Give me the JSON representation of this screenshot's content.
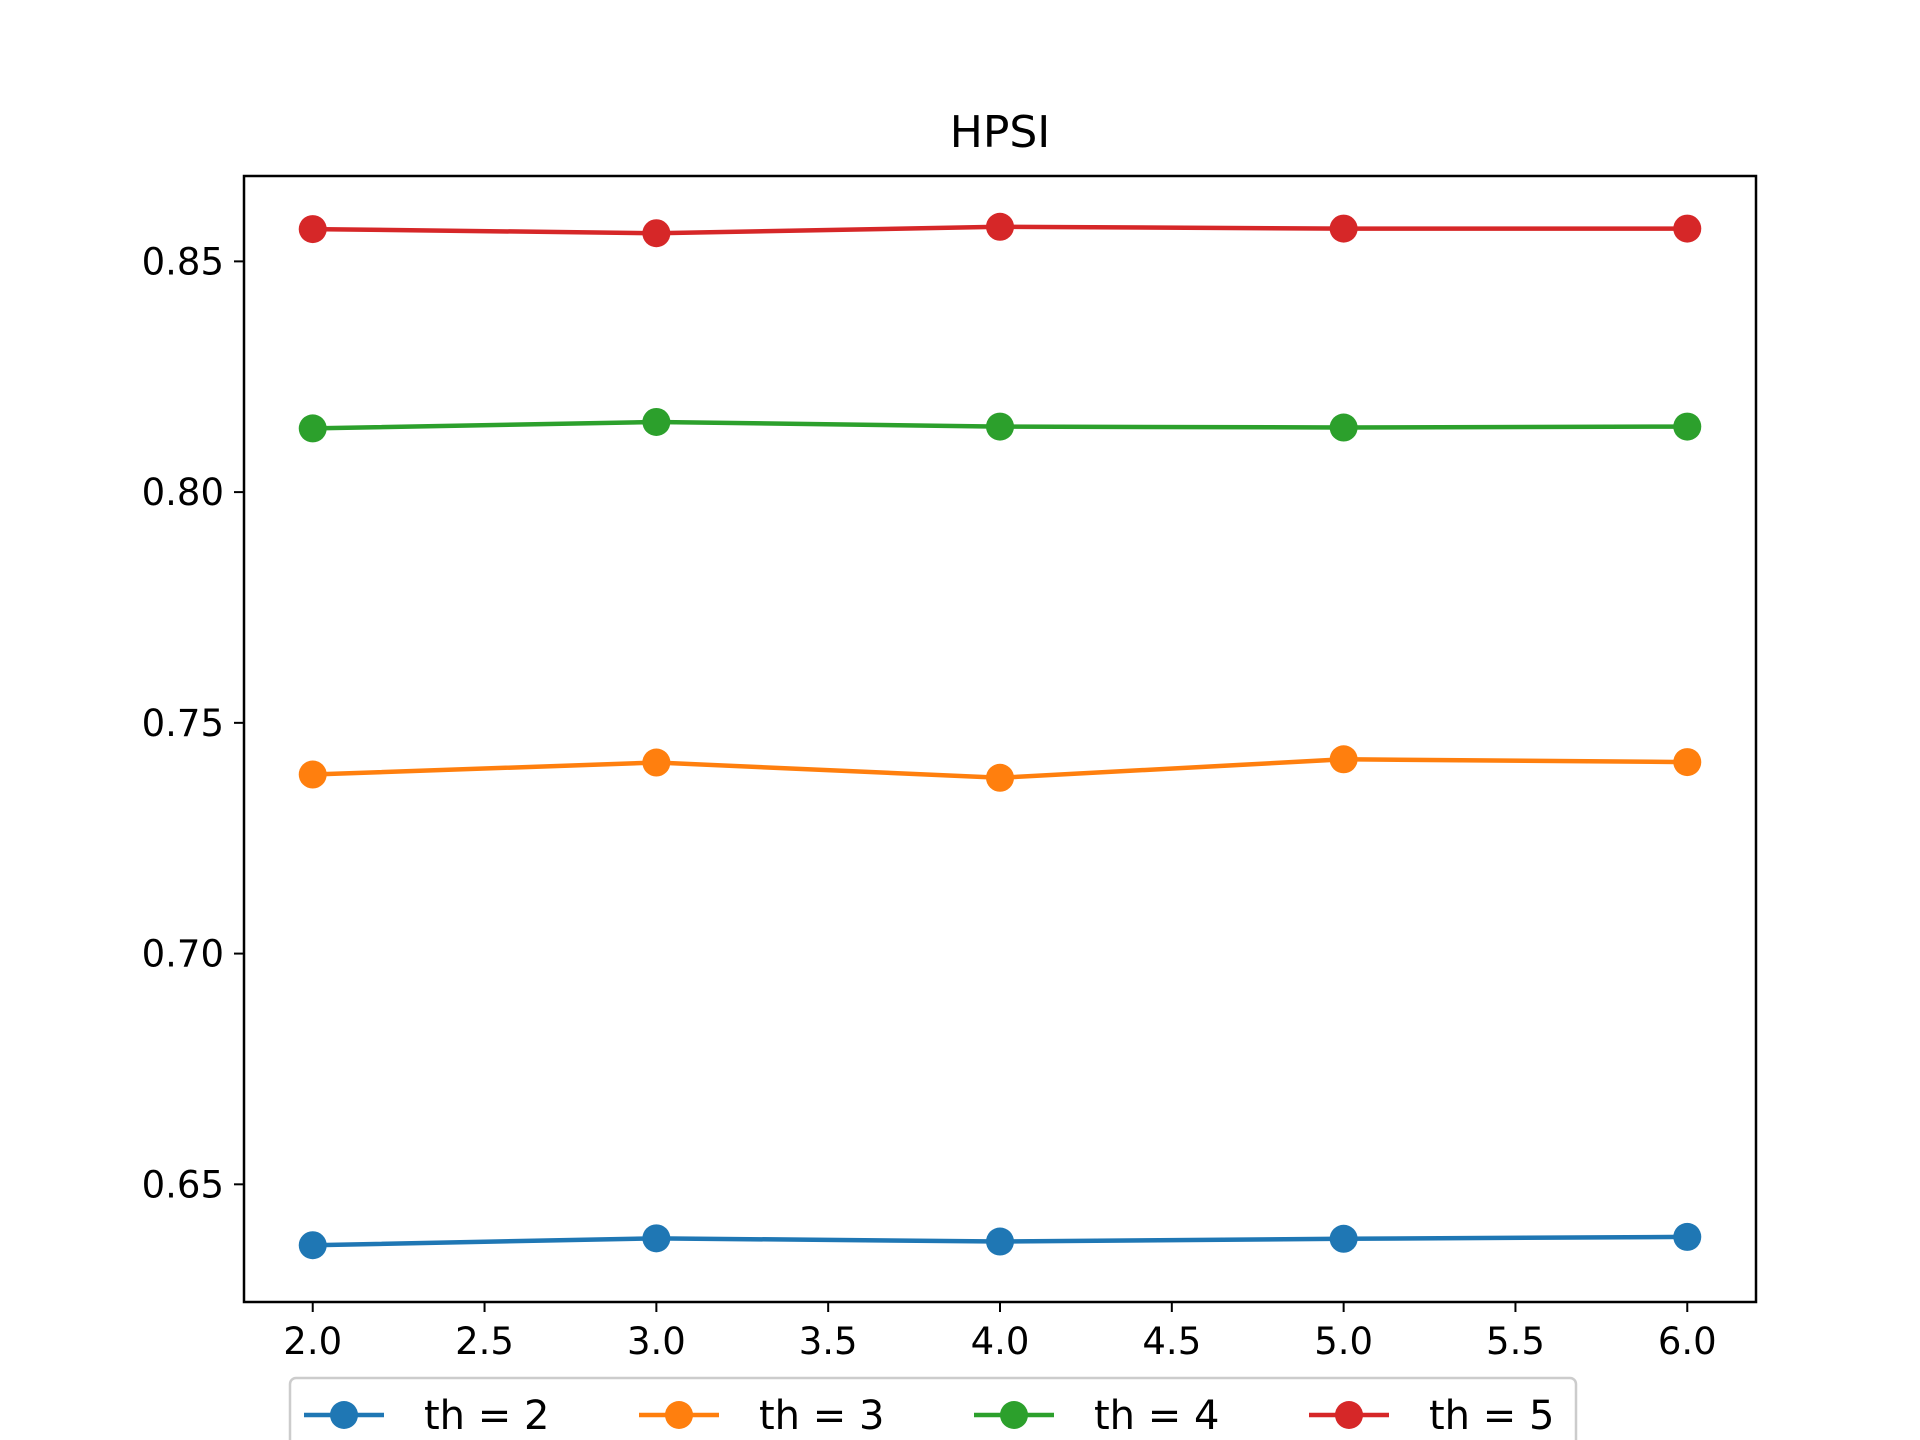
{
  "chart_data": {
    "type": "line",
    "title": "HPSI",
    "xlabel": "",
    "ylabel": "",
    "x": [
      2,
      3,
      4,
      5,
      6
    ],
    "xlim": [
      1.8,
      6.2
    ],
    "ylim": [
      0.6245,
      0.8685
    ],
    "xticks": [
      2.0,
      2.5,
      3.0,
      3.5,
      4.0,
      4.5,
      5.0,
      5.5,
      6.0
    ],
    "xtick_labels": [
      "2.0",
      "2.5",
      "3.0",
      "3.5",
      "4.0",
      "4.5",
      "5.0",
      "5.5",
      "6.0"
    ],
    "yticks": [
      0.65,
      0.7,
      0.75,
      0.8,
      0.85
    ],
    "ytick_labels": [
      "0.65",
      "0.70",
      "0.75",
      "0.80",
      "0.85"
    ],
    "grid": false,
    "legend_position": "bottom-center",
    "series": [
      {
        "name": "th = 2",
        "color": "#1f77b4",
        "values": [
          0.6368,
          0.6383,
          0.6376,
          0.6382,
          0.6386
        ]
      },
      {
        "name": "th = 3",
        "color": "#ff7f0e",
        "values": [
          0.7388,
          0.7414,
          0.7381,
          0.7421,
          0.7415
        ]
      },
      {
        "name": "th = 4",
        "color": "#2ca02c",
        "values": [
          0.8138,
          0.8152,
          0.8142,
          0.814,
          0.8142
        ]
      },
      {
        "name": "th = 5",
        "color": "#d62728",
        "values": [
          0.857,
          0.8561,
          0.8575,
          0.8571,
          0.8571
        ]
      }
    ]
  }
}
